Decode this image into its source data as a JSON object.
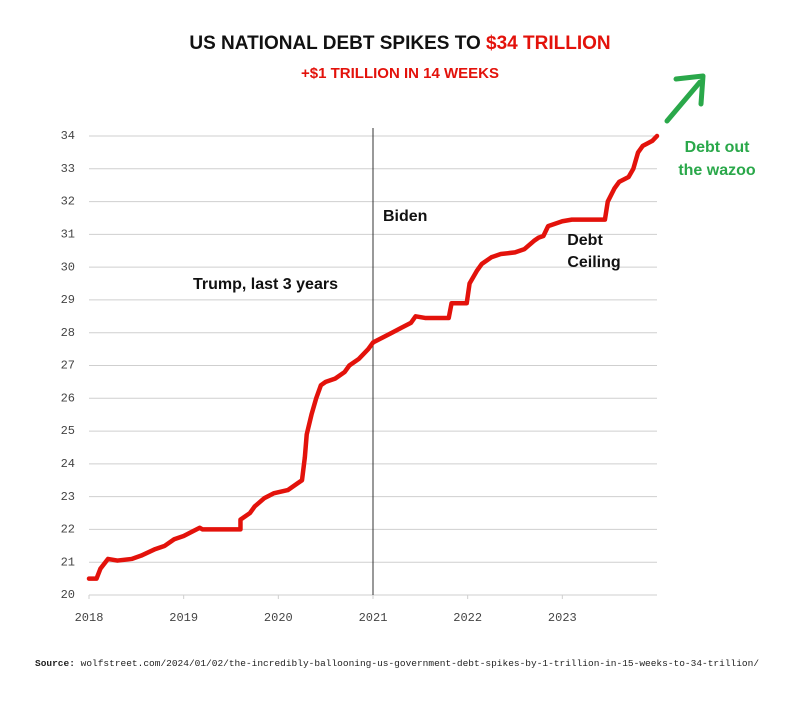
{
  "chart_data": {
    "type": "line",
    "title": "US NATIONAL DEBT SPIKES TO ",
    "title_highlight": "$34 TRILLION",
    "subtitle": "+$1 TRILLION IN 14 WEEKS",
    "annotations": [
      "Biden",
      "Trump, last 3 years",
      "Debt",
      "Ceiling",
      "Debt out",
      "the wazoo"
    ],
    "vline_x": 2021,
    "x": [
      2018.0,
      2018.08,
      2018.12,
      2018.2,
      2018.3,
      2018.45,
      2018.55,
      2018.7,
      2018.8,
      2018.9,
      2019.0,
      2019.1,
      2019.17,
      2019.2,
      2019.6,
      2019.6,
      2019.7,
      2019.75,
      2019.85,
      2019.95,
      2020.1,
      2020.2,
      2020.25,
      2020.28,
      2020.3,
      2020.35,
      2020.4,
      2020.45,
      2020.5,
      2020.6,
      2020.7,
      2020.75,
      2020.85,
      2020.95,
      2021.0,
      2021.1,
      2021.2,
      2021.3,
      2021.4,
      2021.45,
      2021.55,
      2021.8,
      2021.83,
      2021.99,
      2022.02,
      2022.1,
      2022.15,
      2022.25,
      2022.35,
      2022.5,
      2022.6,
      2022.7,
      2022.75,
      2022.8,
      2022.85,
      2023.0,
      2023.1,
      2023.45,
      2023.48,
      2023.55,
      2023.6,
      2023.7,
      2023.75,
      2023.8,
      2023.85,
      2023.95,
      2024.0
    ],
    "series": [
      {
        "name": "US national debt",
        "color": "#e3120b",
        "values": [
          20.5,
          20.5,
          20.8,
          21.1,
          21.05,
          21.1,
          21.2,
          21.4,
          21.5,
          21.7,
          21.8,
          21.95,
          22.05,
          22.0,
          22.0,
          22.3,
          22.5,
          22.7,
          22.95,
          23.1,
          23.2,
          23.4,
          23.5,
          24.2,
          24.9,
          25.5,
          26.0,
          26.4,
          26.5,
          26.6,
          26.8,
          27.0,
          27.2,
          27.5,
          27.7,
          27.85,
          28.0,
          28.15,
          28.3,
          28.5,
          28.45,
          28.45,
          28.9,
          28.9,
          29.5,
          29.9,
          30.1,
          30.3,
          30.4,
          30.45,
          30.55,
          30.8,
          30.9,
          30.95,
          31.25,
          31.4,
          31.45,
          31.45,
          32.0,
          32.4,
          32.6,
          32.75,
          33.0,
          33.5,
          33.7,
          33.85,
          34.0
        ]
      }
    ],
    "xlim": [
      2018,
      2024
    ],
    "xticks": [
      2018,
      2019,
      2020,
      2021,
      2022,
      2023
    ],
    "ylim": [
      20,
      34
    ],
    "yticks": [
      20,
      21,
      22,
      23,
      24,
      25,
      26,
      27,
      28,
      29,
      30,
      31,
      32,
      33,
      34
    ],
    "grid": true,
    "source_label": "Source:",
    "source": "wolfstreet.com/2024/01/02/the-incredibly-ballooning-us-government-debt-spikes-by-1-trillion-in-15-weeks-to-34-trillion/"
  }
}
